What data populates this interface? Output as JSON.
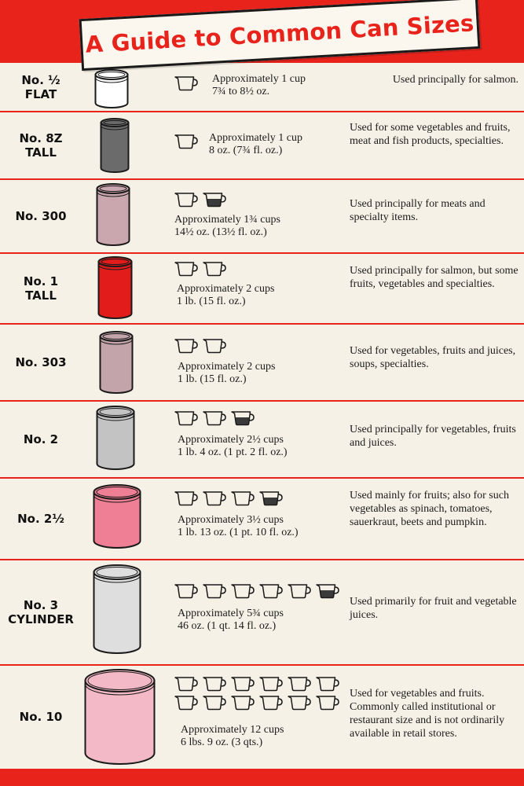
{
  "title": "A Guide to Common Can Sizes",
  "colors": {
    "accent_red": "#e8231c",
    "paper": "#f6f1e6"
  },
  "cup_icon": "measuring-cup-icon",
  "rows": [
    {
      "name_lines": [
        "No. ½",
        "FLAT"
      ],
      "can_color": "#ffffff",
      "cups_full": 1,
      "cups_partial": 0,
      "amount_lines": [
        "Approximately 1 cup",
        "7¾ to 8½ oz."
      ],
      "usage": "Used principally for salmon."
    },
    {
      "name_lines": [
        "No. 8Z",
        "TALL"
      ],
      "can_color": "#6b6b6b",
      "cups_full": 1,
      "cups_partial": 0,
      "amount_lines": [
        "Approximately 1 cup",
        "8 oz. (7¾ fl. oz.)"
      ],
      "usage": "Used for some vegetables and fruits, meat and fish products, specialties."
    },
    {
      "name_lines": [
        "No. 300"
      ],
      "can_color": "#caa6ae",
      "cups_full": 1,
      "cups_partial": 1,
      "amount_lines": [
        "Approximately 1¾ cups",
        "14½ oz. (13½ fl. oz.)"
      ],
      "usage": "Used principally for meats and specialty items."
    },
    {
      "name_lines": [
        "No. 1",
        "TALL"
      ],
      "can_color": "#e21b1b",
      "cups_full": 2,
      "cups_partial": 0,
      "amount_lines": [
        "Approximately 2 cups",
        "1 lb. (15 fl. oz.)"
      ],
      "usage": "Used principally for salmon, but some fruits, vegetables and specialties."
    },
    {
      "name_lines": [
        "No. 303"
      ],
      "can_color": "#c4a4ab",
      "cups_full": 2,
      "cups_partial": 0,
      "amount_lines": [
        "Approximately 2 cups",
        "1 lb. (15 fl. oz.)"
      ],
      "usage": "Used for vegetables, fruits and juices, soups, specialties."
    },
    {
      "name_lines": [
        "No. 2"
      ],
      "can_color": "#c3c3c3",
      "cups_full": 2,
      "cups_partial": 1,
      "amount_lines": [
        "Approximately 2½ cups",
        "1 lb. 4 oz. (1 pt. 2 fl. oz.)"
      ],
      "usage": "Used principally for vegetables, fruits and juices."
    },
    {
      "name_lines": [
        "No. 2½"
      ],
      "can_color": "#ee7f95",
      "cups_full": 3,
      "cups_partial": 1,
      "amount_lines": [
        "Approximately 3½ cups",
        "1 lb. 13 oz. (1 pt. 10 fl. oz.)"
      ],
      "usage": "Used mainly for fruits; also for such vegetables as spinach, tomatoes, sauerkraut, beets and pumpkin."
    },
    {
      "name_lines": [
        "No. 3",
        "CYLINDER"
      ],
      "can_color": "#dedede",
      "cups_full": 5,
      "cups_partial": 1,
      "amount_lines": [
        "Approximately 5¾ cups",
        "46 oz. (1 qt. 14 fl. oz.)"
      ],
      "usage": "Used primarily for fruit and vegetable juices."
    },
    {
      "name_lines": [
        "No. 10"
      ],
      "can_color": "#f3b9c6",
      "cups_full": 12,
      "cups_partial": 0,
      "amount_lines": [
        "Approximately 12 cups",
        "6 lbs. 9 oz. (3 qts.)"
      ],
      "usage": "Used for vegetables and fruits. Commonly called institutional or restaurant size and is not ordinarily available in retail stores."
    }
  ]
}
